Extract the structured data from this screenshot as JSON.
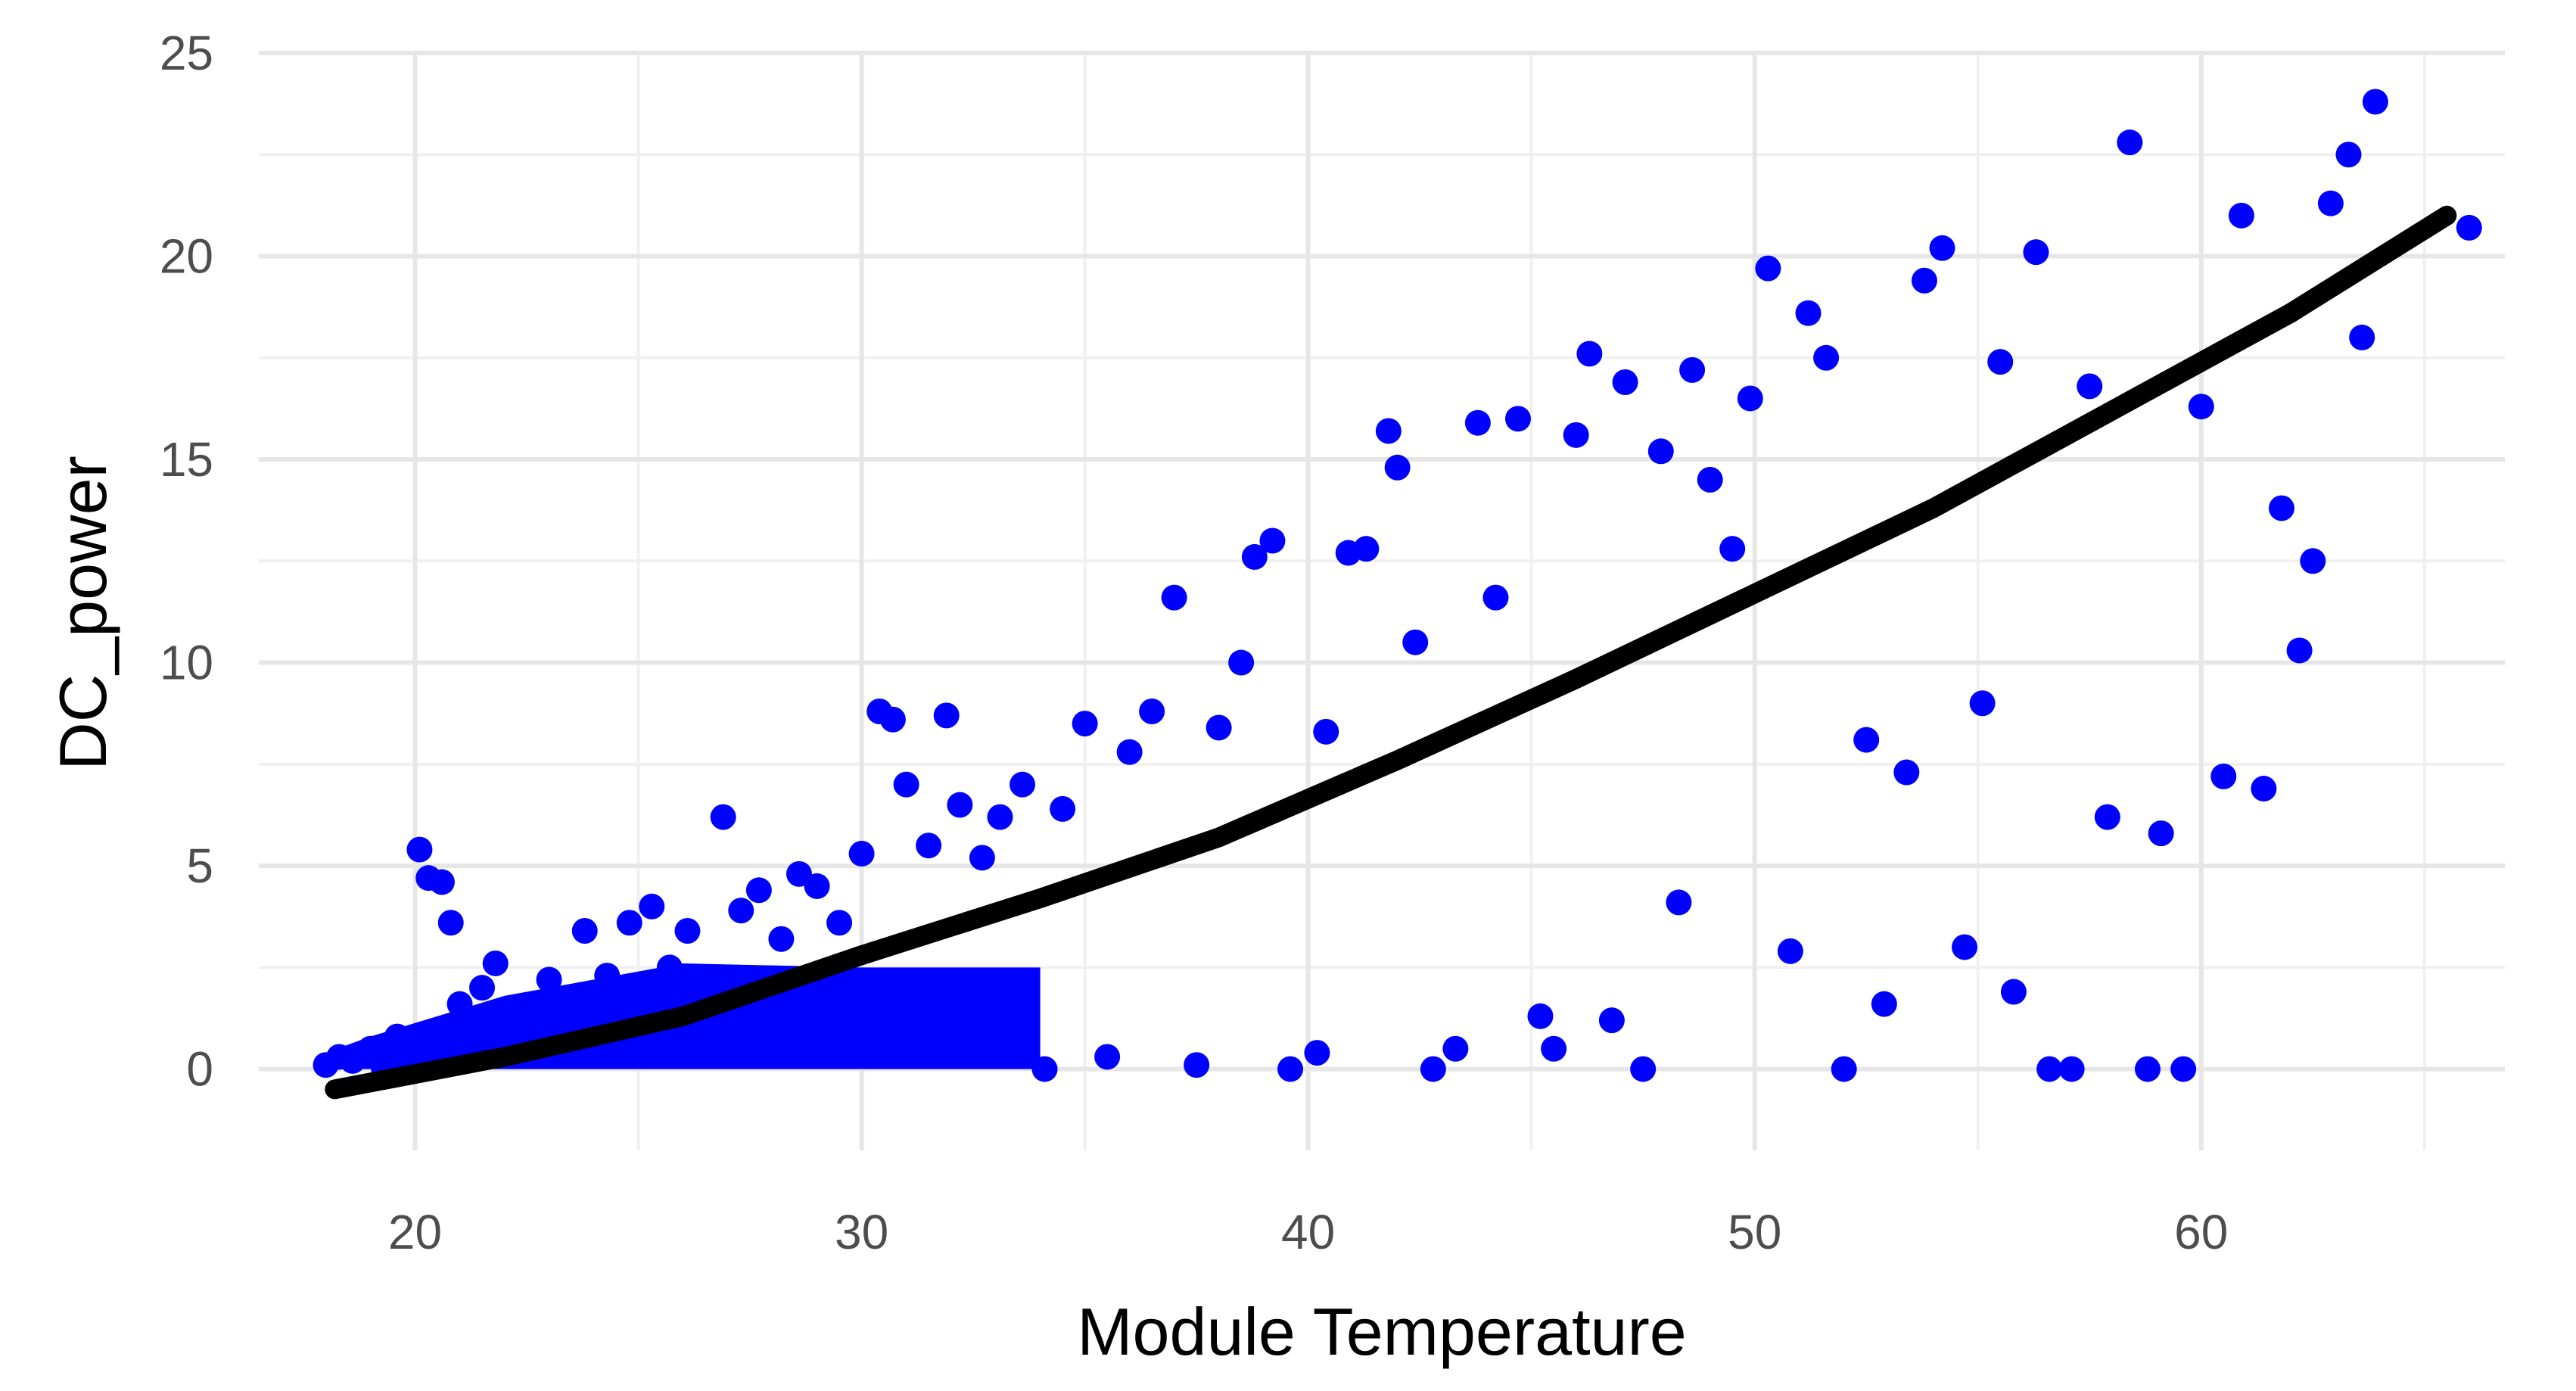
{
  "chart_data": {
    "type": "scatter",
    "xlabel": "Module Temperature",
    "ylabel": "DC_power",
    "xlim": [
      16.5,
      66.8
    ],
    "ylim": [
      -2.0,
      25.0
    ],
    "x_ticks": [
      20,
      30,
      40,
      50,
      60
    ],
    "x_tick_labels": [
      "20",
      "30",
      "40",
      "50",
      "60"
    ],
    "y_ticks": [
      0,
      5,
      10,
      15,
      20,
      25
    ],
    "y_tick_labels": [
      "0",
      "5",
      "10",
      "15",
      "20",
      "25"
    ],
    "grid": true,
    "legend": "none",
    "point_color": "#0000ff",
    "trend_color": "#000000",
    "series": [
      {
        "kind": "points",
        "points": [
          [
            18.0,
            0.1
          ],
          [
            18.3,
            0.3
          ],
          [
            18.6,
            0.2
          ],
          [
            19.0,
            0.5
          ],
          [
            19.3,
            0.0
          ],
          [
            19.6,
            0.8
          ],
          [
            20.1,
            5.4
          ],
          [
            20.3,
            4.7
          ],
          [
            20.6,
            4.6
          ],
          [
            20.8,
            3.6
          ],
          [
            21.0,
            1.6
          ],
          [
            21.2,
            0.7
          ],
          [
            21.5,
            2.0
          ],
          [
            21.8,
            2.6
          ],
          [
            22.2,
            1.4
          ],
          [
            22.6,
            0.9
          ],
          [
            23.0,
            2.2
          ],
          [
            23.4,
            1.7
          ],
          [
            23.8,
            3.4
          ],
          [
            24.3,
            2.3
          ],
          [
            24.8,
            3.6
          ],
          [
            25.3,
            4.0
          ],
          [
            25.7,
            2.5
          ],
          [
            26.1,
            3.4
          ],
          [
            26.5,
            2.1
          ],
          [
            26.9,
            6.2
          ],
          [
            27.3,
            3.9
          ],
          [
            27.7,
            4.4
          ],
          [
            28.2,
            3.2
          ],
          [
            28.6,
            4.8
          ],
          [
            29.0,
            4.5
          ],
          [
            29.5,
            3.6
          ],
          [
            30.0,
            5.3
          ],
          [
            30.4,
            8.8
          ],
          [
            30.7,
            8.6
          ],
          [
            31.0,
            7.0
          ],
          [
            31.5,
            5.5
          ],
          [
            31.9,
            8.7
          ],
          [
            32.2,
            6.5
          ],
          [
            32.7,
            5.2
          ],
          [
            33.1,
            6.2
          ],
          [
            33.6,
            7.0
          ],
          [
            34.1,
            0.0
          ],
          [
            34.5,
            6.4
          ],
          [
            35.0,
            8.5
          ],
          [
            35.5,
            0.3
          ],
          [
            36.0,
            7.8
          ],
          [
            36.5,
            8.8
          ],
          [
            37.0,
            11.6
          ],
          [
            37.5,
            0.1
          ],
          [
            38.0,
            8.4
          ],
          [
            38.5,
            10.0
          ],
          [
            38.8,
            12.6
          ],
          [
            39.2,
            13.0
          ],
          [
            39.6,
            0.0
          ],
          [
            40.2,
            0.4
          ],
          [
            40.4,
            8.3
          ],
          [
            40.9,
            12.7
          ],
          [
            41.3,
            12.8
          ],
          [
            41.8,
            15.7
          ],
          [
            42.0,
            14.8
          ],
          [
            42.4,
            10.5
          ],
          [
            42.8,
            0.0
          ],
          [
            43.3,
            0.5
          ],
          [
            43.8,
            15.9
          ],
          [
            44.2,
            11.6
          ],
          [
            44.7,
            16.0
          ],
          [
            45.2,
            1.3
          ],
          [
            45.5,
            0.5
          ],
          [
            46.0,
            15.6
          ],
          [
            46.3,
            17.6
          ],
          [
            46.8,
            1.2
          ],
          [
            47.1,
            16.9
          ],
          [
            47.5,
            0.0
          ],
          [
            47.9,
            15.2
          ],
          [
            48.3,
            4.1
          ],
          [
            48.6,
            17.2
          ],
          [
            49.0,
            14.5
          ],
          [
            49.5,
            12.8
          ],
          [
            49.9,
            16.5
          ],
          [
            50.3,
            19.7
          ],
          [
            50.8,
            2.9
          ],
          [
            51.2,
            18.6
          ],
          [
            51.6,
            17.5
          ],
          [
            52.0,
            0.0
          ],
          [
            52.5,
            8.1
          ],
          [
            52.9,
            1.6
          ],
          [
            53.4,
            7.3
          ],
          [
            53.8,
            19.4
          ],
          [
            54.2,
            20.2
          ],
          [
            54.7,
            3.0
          ],
          [
            55.1,
            9.0
          ],
          [
            55.5,
            17.4
          ],
          [
            55.8,
            1.9
          ],
          [
            56.3,
            20.1
          ],
          [
            56.6,
            0.0
          ],
          [
            57.1,
            0.0
          ],
          [
            57.5,
            16.8
          ],
          [
            57.9,
            6.2
          ],
          [
            58.4,
            22.8
          ],
          [
            58.8,
            0.0
          ],
          [
            59.1,
            5.8
          ],
          [
            59.6,
            0.0
          ],
          [
            60.0,
            16.3
          ],
          [
            60.5,
            7.2
          ],
          [
            60.9,
            21.0
          ],
          [
            61.4,
            6.9
          ],
          [
            61.8,
            13.8
          ],
          [
            62.2,
            10.3
          ],
          [
            62.5,
            12.5
          ],
          [
            62.9,
            21.3
          ],
          [
            63.3,
            22.5
          ],
          [
            63.6,
            18.0
          ],
          [
            63.9,
            23.8
          ],
          [
            66.0,
            20.7
          ]
        ]
      },
      {
        "kind": "trend",
        "points": [
          [
            18.2,
            -0.5
          ],
          [
            22.0,
            0.3
          ],
          [
            26.0,
            1.3
          ],
          [
            30.0,
            2.8
          ],
          [
            34.0,
            4.2
          ],
          [
            38.0,
            5.7
          ],
          [
            42.0,
            7.6
          ],
          [
            46.0,
            9.6
          ],
          [
            50.0,
            11.7
          ],
          [
            54.0,
            13.8
          ],
          [
            58.0,
            16.2
          ],
          [
            62.0,
            18.6
          ],
          [
            65.5,
            21.0
          ]
        ]
      }
    ]
  }
}
